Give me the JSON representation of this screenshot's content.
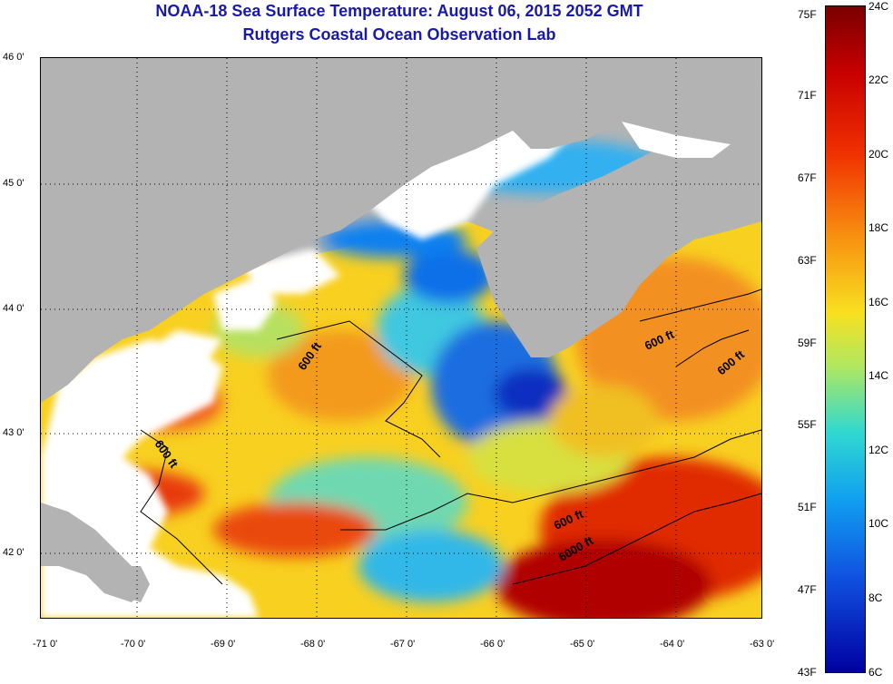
{
  "title": "NOAA-18 Sea Surface Temperature:  August 06, 2015 2052 GMT",
  "subtitle": "Rutgers Coastal Ocean Observation Lab",
  "map": {
    "lat_labels": [
      "46 0'",
      "45 0'",
      "44 0'",
      "43 0'",
      "42 0'"
    ],
    "lon_labels": [
      "-71 0'",
      "-70 0'",
      "-69 0'",
      "-68 0'",
      "-67 0'",
      "-66 0'",
      "-65 0'",
      "-64 0'",
      "-63 0'"
    ],
    "contour_labels": [
      "600 ft",
      "600 ft",
      "600 ft",
      "600 ft",
      "600 ft",
      "6000 ft"
    ],
    "colors": {
      "land": "#b3b3b3",
      "cloud": "#ffffff"
    }
  },
  "colorbar": {
    "fahrenheit": [
      "75F",
      "71F",
      "67F",
      "63F",
      "59F",
      "55F",
      "51F",
      "47F",
      "43F"
    ],
    "celsius": [
      "24C",
      "22C",
      "20C",
      "18C",
      "16C",
      "14C",
      "12C",
      "10C",
      "8C",
      "6C"
    ]
  }
}
